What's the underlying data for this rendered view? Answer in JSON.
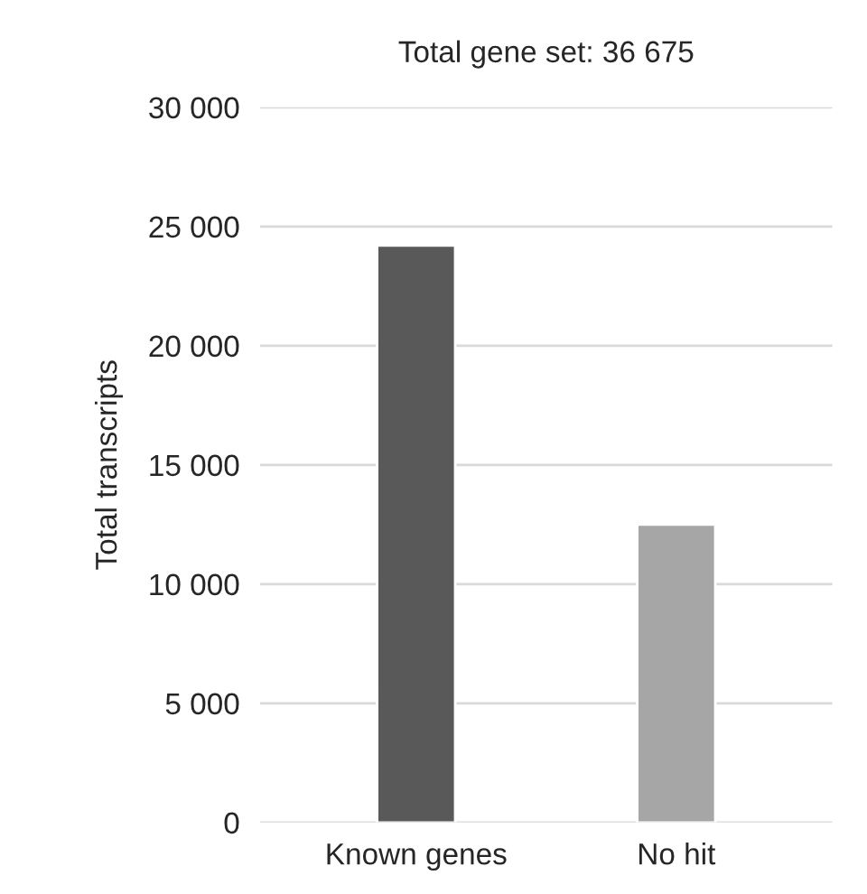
{
  "chart_data": {
    "type": "bar",
    "title": "Total gene set: 36 675",
    "ylabel": "Total transcripts",
    "categories": [
      "Known genes",
      "No hit"
    ],
    "values": [
      24200,
      12500
    ],
    "colors": [
      "#595959",
      "#a6a6a6"
    ],
    "ylim": [
      0,
      30000
    ],
    "yticks": [
      {
        "value": 0,
        "label": "0"
      },
      {
        "value": 5000,
        "label": "5 000"
      },
      {
        "value": 10000,
        "label": "10 000"
      },
      {
        "value": 15000,
        "label": "15 000"
      },
      {
        "value": 20000,
        "label": "20 000"
      },
      {
        "value": 25000,
        "label": "25 000"
      },
      {
        "value": 30000,
        "label": "30 000"
      }
    ],
    "grid": "y",
    "legend": false
  }
}
